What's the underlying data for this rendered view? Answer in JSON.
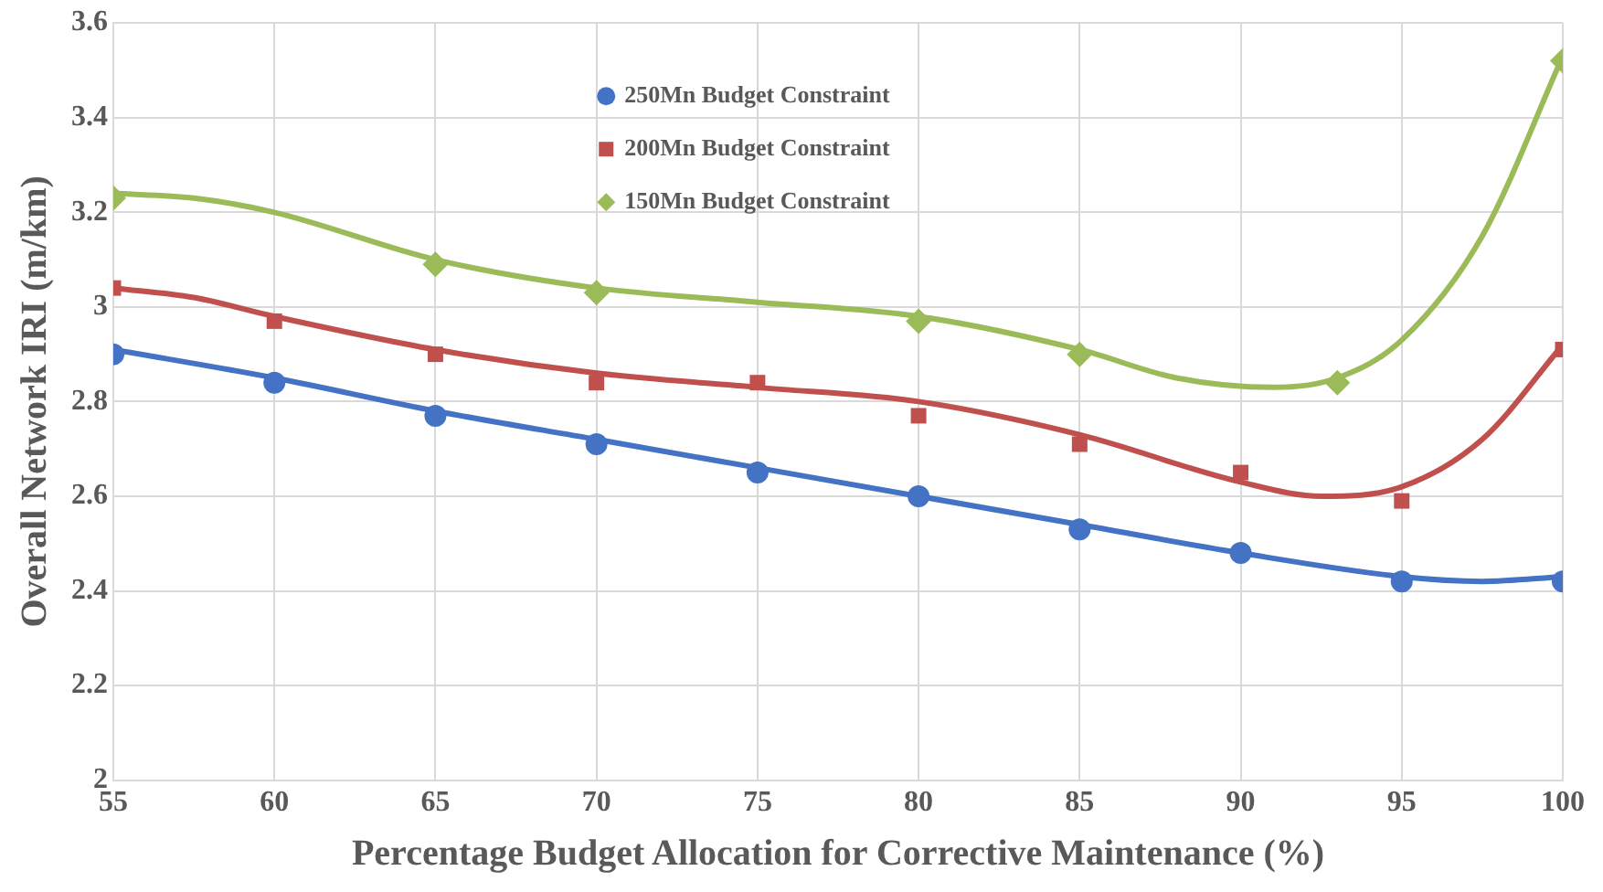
{
  "chart_data": {
    "type": "scatter",
    "xlabel": "Percentage Budget Allocation for Corrective Maintenance (%)",
    "ylabel": "Overall Network IRI (m/km)",
    "xlim": [
      55,
      100
    ],
    "xticks": [
      55,
      60,
      65,
      70,
      75,
      80,
      85,
      90,
      95,
      100
    ],
    "ylim": [
      2,
      3.6
    ],
    "yticks": [
      2,
      2.2,
      2.4,
      2.6,
      2.8,
      3,
      3.2,
      3.4,
      3.6
    ],
    "grid": true,
    "legend": "top",
    "series": [
      {
        "name": "250Mn Budget Constraint",
        "color": "#4472c4",
        "marker": "circle",
        "x": [
          55,
          60,
          65,
          70,
          75,
          80,
          85,
          90,
          95,
          100
        ],
        "values": [
          2.9,
          2.84,
          2.77,
          2.71,
          2.65,
          2.6,
          2.53,
          2.48,
          2.42,
          2.42
        ]
      },
      {
        "name": "200Mn Budget Constraint",
        "color": "#c0504d",
        "marker": "square",
        "x": [
          55,
          60,
          65,
          70,
          75,
          80,
          85,
          90,
          95,
          100
        ],
        "values": [
          3.04,
          2.97,
          2.9,
          2.84,
          2.84,
          2.77,
          2.71,
          2.65,
          2.59,
          2.91
        ]
      },
      {
        "name": "150Mn Budget Constraint",
        "color": "#9bbb59",
        "marker": "diamond",
        "x": [
          55,
          65,
          70,
          80,
          85,
          93,
          100
        ],
        "values": [
          3.23,
          3.09,
          3.03,
          2.97,
          2.9,
          2.84,
          3.52
        ]
      },
      {
        "type": "line",
        "color": "#4472c4",
        "marker": "none",
        "x": [
          55,
          60,
          65,
          70,
          75,
          80,
          85,
          90,
          95,
          97.5,
          100
        ],
        "values": [
          2.91,
          2.85,
          2.78,
          2.72,
          2.66,
          2.6,
          2.54,
          2.48,
          2.43,
          2.42,
          2.43
        ]
      },
      {
        "type": "line",
        "color": "#c0504d",
        "marker": "none",
        "x": [
          55,
          57.5,
          60,
          65,
          70,
          75,
          80,
          85,
          90,
          92.5,
          95,
          97.5,
          100
        ],
        "values": [
          3.04,
          3.02,
          2.98,
          2.91,
          2.86,
          2.83,
          2.8,
          2.73,
          2.63,
          2.6,
          2.62,
          2.72,
          2.92
        ]
      },
      {
        "type": "line",
        "color": "#9bbb59",
        "marker": "none",
        "x": [
          55,
          57.5,
          60,
          65,
          70,
          75,
          80,
          85,
          88,
          91,
          93,
          95,
          97.5,
          100
        ],
        "values": [
          3.24,
          3.23,
          3.2,
          3.1,
          3.04,
          3.01,
          2.98,
          2.91,
          2.85,
          2.83,
          2.85,
          2.93,
          3.15,
          3.53
        ]
      }
    ]
  }
}
